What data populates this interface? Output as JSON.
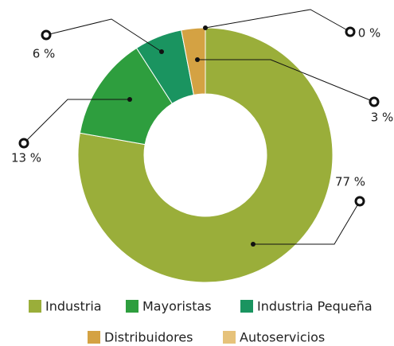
{
  "chart_data": {
    "type": "donut",
    "categories": [
      "Industria",
      "Mayoristas",
      "Industria Pequeña",
      "Distribuidores",
      "Autoservicios"
    ],
    "values": [
      77,
      13,
      6,
      3,
      0
    ],
    "value_labels": [
      "77 %",
      "13 %",
      "6 %",
      "3 %",
      "0 %"
    ],
    "colors": [
      "#9aae3a",
      "#2e9e3e",
      "#1a9460",
      "#d4a243",
      "#e6c27a"
    ],
    "legend": "bottom"
  }
}
